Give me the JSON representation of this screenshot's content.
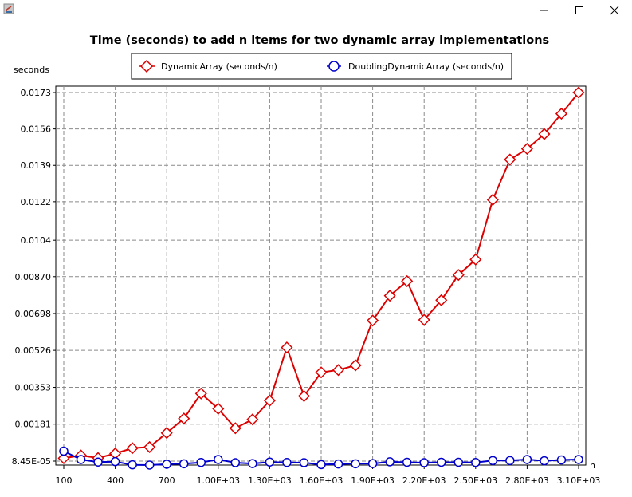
{
  "window": {
    "minimize_icon": "minimize-icon",
    "maximize_icon": "maximize-icon",
    "close_icon": "close-icon"
  },
  "chart_data": {
    "type": "line",
    "title": "Time (seconds) to add n items for two dynamic array implementations",
    "xlabel": "n",
    "ylabel": "seconds",
    "x": [
      100,
      200,
      300,
      400,
      500,
      600,
      700,
      800,
      900,
      1000,
      1100,
      1200,
      1300,
      1400,
      1500,
      1600,
      1700,
      1800,
      1900,
      2000,
      2100,
      2200,
      2300,
      2400,
      2500,
      2600,
      2700,
      2800,
      2900,
      3000,
      3100
    ],
    "xlim": [
      100,
      3100
    ],
    "ylim": [
      8.45e-05,
      0.0173
    ],
    "x_ticks": [
      {
        "value": 100,
        "label": "100"
      },
      {
        "value": 400,
        "label": "400"
      },
      {
        "value": 700,
        "label": "700"
      },
      {
        "value": 1000,
        "label": "1.00E+03"
      },
      {
        "value": 1300,
        "label": "1.30E+03"
      },
      {
        "value": 1600,
        "label": "1.60E+03"
      },
      {
        "value": 1900,
        "label": "1.90E+03"
      },
      {
        "value": 2200,
        "label": "2.20E+03"
      },
      {
        "value": 2500,
        "label": "2.50E+03"
      },
      {
        "value": 2800,
        "label": "2.80E+03"
      },
      {
        "value": 3100,
        "label": "3.10E+03"
      }
    ],
    "y_ticks": [
      {
        "value": 8.45e-05,
        "label": "8.45E-05"
      },
      {
        "value": 0.00181,
        "label": "0.00181"
      },
      {
        "value": 0.00353,
        "label": "0.00353"
      },
      {
        "value": 0.00526,
        "label": "0.00526"
      },
      {
        "value": 0.00698,
        "label": "0.00698"
      },
      {
        "value": 0.0087,
        "label": "0.00870"
      },
      {
        "value": 0.0104,
        "label": "0.0104"
      },
      {
        "value": 0.0122,
        "label": "0.0122"
      },
      {
        "value": 0.0139,
        "label": "0.0139"
      },
      {
        "value": 0.0156,
        "label": "0.0156"
      },
      {
        "value": 0.0173,
        "label": "0.0173"
      }
    ],
    "grid": true,
    "legend_position": "top",
    "series": [
      {
        "name": "DynamicArray (seconds/n)",
        "color": "#dd0000",
        "marker": "diamond",
        "values": [
          0.00022,
          0.00035,
          0.00023,
          0.00044,
          0.00069,
          0.00074,
          0.0014,
          0.00207,
          0.00324,
          0.00253,
          0.00162,
          0.00203,
          0.00291,
          0.00539,
          0.00312,
          0.00423,
          0.00434,
          0.00456,
          0.00665,
          0.00781,
          0.00849,
          0.00668,
          0.0076,
          0.00878,
          0.0095,
          0.01229,
          0.01417,
          0.01467,
          0.01536,
          0.01631,
          0.0173
        ]
      },
      {
        "name": "DoublingDynamicArray (seconds/n)",
        "color": "#0000cc",
        "marker": "circle",
        "values": [
          0.00055,
          0.00016,
          4e-05,
          6e-05,
          -9e-05,
          -0.0001,
          -6e-05,
          -4e-05,
          2e-05,
          0.00016,
          1e-05,
          -3e-05,
          4e-05,
          2e-05,
          1e-05,
          -8e-05,
          -5e-05,
          -4e-05,
          -3e-05,
          5e-05,
          3e-05,
          1e-05,
          3e-05,
          3e-05,
          2e-05,
          0.00011,
          0.00011,
          0.00016,
          0.0001,
          0.00014,
          0.00016
        ]
      }
    ]
  }
}
